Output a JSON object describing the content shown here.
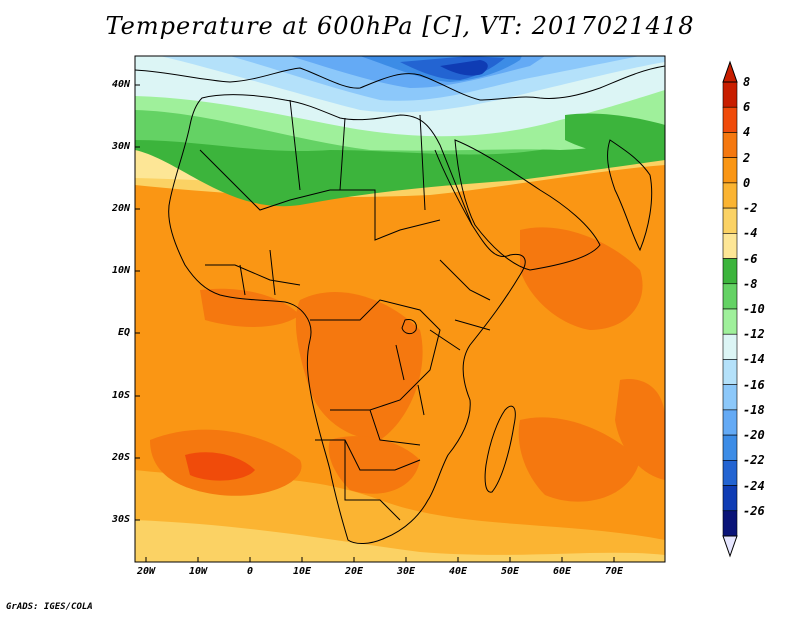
{
  "title": "Temperature at 600hPa [C], VT: 2017021418",
  "credit": "GrADS: IGES/COLA",
  "lat_labels": [
    "40N",
    "30N",
    "20N",
    "10N",
    "EQ",
    "10S",
    "20S",
    "30S"
  ],
  "lon_labels": [
    "20W",
    "10W",
    "0",
    "10E",
    "20E",
    "30E",
    "40E",
    "50E",
    "60E",
    "70E"
  ],
  "colorbar": {
    "levels": [
      "8",
      "6",
      "4",
      "2",
      "0",
      "-2",
      "-4",
      "-6",
      "-8",
      "-10",
      "-12",
      "-14",
      "-16",
      "-18",
      "-20",
      "-22",
      "-24",
      "-26"
    ],
    "colors": [
      "#c81e00",
      "#f04b0a",
      "#f5780f",
      "#fa9614",
      "#fbb432",
      "#fbd264",
      "#fde696",
      "#3cb43c",
      "#64d264",
      "#9ff09b",
      "#dcf5f5",
      "#b4e1fa",
      "#8cc8fa",
      "#64aaf5",
      "#3c8ce6",
      "#2364d2",
      "#0f3cb4",
      "#0a1478"
    ],
    "under_color": "#e6e6ff",
    "over_color": "#c81e00"
  },
  "map": {
    "lon_range": [
      -22,
      80
    ],
    "lat_range": [
      -36,
      45
    ],
    "variable": "temperature",
    "level_hPa": 600,
    "units": "C"
  }
}
